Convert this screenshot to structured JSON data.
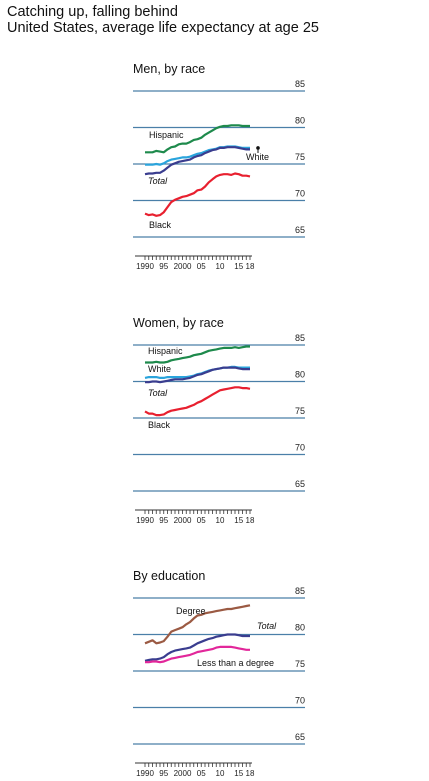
{
  "header": {
    "title": "Catching up, falling behind",
    "subtitle": "United States, average life expectancy at age 25"
  },
  "colors": {
    "hispanic": "#1e8a4c",
    "white": "#2aa4dc",
    "total": "#3a3d8f",
    "black": "#e8202f",
    "degree": "#9b5a43",
    "less_than_degree": "#e2279a",
    "gridline": "#4a7fa8"
  },
  "chart_data": [
    {
      "type": "line",
      "title": "Men, by race",
      "x": [
        1990,
        1991,
        1992,
        1993,
        1994,
        1995,
        1996,
        1997,
        1998,
        1999,
        2000,
        2001,
        2002,
        2003,
        2004,
        2005,
        2006,
        2007,
        2008,
        2009,
        2010,
        2011,
        2012,
        2013,
        2014,
        2015,
        2016,
        2017,
        2018
      ],
      "ylim": [
        65,
        85
      ],
      "yticks": [
        85,
        80,
        75,
        70,
        65
      ],
      "xticklabels": [
        "1990",
        "95",
        "2000",
        "05",
        "10",
        "15",
        "18"
      ],
      "series": [
        {
          "name": "Hispanic",
          "color_key": "hispanic",
          "values": [
            76.6,
            76.6,
            76.6,
            76.8,
            76.7,
            76.6,
            77.0,
            77.3,
            77.4,
            77.7,
            77.8,
            77.8,
            78.0,
            78.3,
            78.4,
            78.6,
            79.0,
            79.3,
            79.6,
            79.9,
            80.1,
            80.2,
            80.2,
            80.3,
            80.3,
            80.3,
            80.2,
            80.2,
            80.2
          ],
          "label_italic": false
        },
        {
          "name": "White",
          "color_key": "white",
          "values": [
            74.9,
            74.9,
            74.9,
            75.0,
            74.9,
            75.1,
            75.4,
            75.6,
            75.7,
            75.8,
            75.9,
            75.9,
            76.0,
            76.2,
            76.4,
            76.5,
            76.7,
            76.9,
            77.0,
            77.1,
            77.3,
            77.3,
            77.4,
            77.4,
            77.4,
            77.3,
            77.2,
            77.2,
            77.2
          ],
          "label_italic": false
        },
        {
          "name": "Total",
          "color_key": "total",
          "values": [
            73.6,
            73.7,
            73.7,
            73.8,
            73.8,
            74.1,
            74.5,
            74.9,
            75.1,
            75.3,
            75.4,
            75.5,
            75.6,
            75.9,
            76.1,
            76.2,
            76.5,
            76.7,
            76.9,
            77.0,
            77.2,
            77.2,
            77.3,
            77.3,
            77.3,
            77.2,
            77.1,
            77.0,
            77.0
          ],
          "label_italic": true
        },
        {
          "name": "Black",
          "color_key": "black",
          "values": [
            68.2,
            68.0,
            68.1,
            67.9,
            68.0,
            68.4,
            69.1,
            69.8,
            70.1,
            70.3,
            70.5,
            70.6,
            70.8,
            71.0,
            71.4,
            71.5,
            71.9,
            72.5,
            72.9,
            73.3,
            73.5,
            73.6,
            73.6,
            73.5,
            73.7,
            73.6,
            73.4,
            73.4,
            73.3
          ],
          "label_italic": false
        }
      ]
    },
    {
      "type": "line",
      "title": "Women, by race",
      "x": [
        1990,
        1991,
        1992,
        1993,
        1994,
        1995,
        1996,
        1997,
        1998,
        1999,
        2000,
        2001,
        2002,
        2003,
        2004,
        2005,
        2006,
        2007,
        2008,
        2009,
        2010,
        2011,
        2012,
        2013,
        2014,
        2015,
        2016,
        2017,
        2018
      ],
      "ylim": [
        65,
        85
      ],
      "yticks": [
        85,
        80,
        75,
        70,
        65
      ],
      "xticklabels": [
        "1990",
        "95",
        "2000",
        "05",
        "10",
        "15",
        "18"
      ],
      "series": [
        {
          "name": "Hispanic",
          "color_key": "hispanic",
          "values": [
            82.6,
            82.6,
            82.6,
            82.7,
            82.6,
            82.6,
            82.7,
            82.9,
            83.0,
            83.1,
            83.2,
            83.3,
            83.4,
            83.6,
            83.7,
            83.8,
            84.0,
            84.2,
            84.3,
            84.4,
            84.5,
            84.6,
            84.6,
            84.6,
            84.7,
            84.6,
            84.7,
            84.8,
            84.8
          ],
          "label_italic": false
        },
        {
          "name": "White",
          "color_key": "white",
          "values": [
            80.5,
            80.6,
            80.6,
            80.6,
            80.5,
            80.5,
            80.6,
            80.6,
            80.6,
            80.6,
            80.6,
            80.6,
            80.7,
            80.8,
            81.0,
            81.1,
            81.3,
            81.5,
            81.6,
            81.7,
            81.8,
            81.9,
            81.9,
            82.0,
            82.0,
            81.9,
            81.9,
            81.9,
            81.9
          ],
          "label_italic": false
        },
        {
          "name": "Total",
          "color_key": "total",
          "values": [
            79.9,
            79.9,
            80.0,
            80.0,
            79.9,
            80.0,
            80.1,
            80.2,
            80.3,
            80.3,
            80.3,
            80.4,
            80.5,
            80.7,
            80.9,
            81.0,
            81.2,
            81.4,
            81.6,
            81.7,
            81.8,
            81.9,
            81.9,
            81.9,
            81.9,
            81.8,
            81.7,
            81.7,
            81.7
          ],
          "label_italic": true
        },
        {
          "name": "Black",
          "color_key": "black",
          "values": [
            75.9,
            75.6,
            75.6,
            75.4,
            75.4,
            75.5,
            75.8,
            76.0,
            76.1,
            76.2,
            76.3,
            76.4,
            76.6,
            76.8,
            77.1,
            77.3,
            77.6,
            77.9,
            78.2,
            78.5,
            78.8,
            78.9,
            79.0,
            79.1,
            79.2,
            79.2,
            79.1,
            79.1,
            79.0
          ],
          "label_italic": false
        }
      ]
    },
    {
      "type": "line",
      "title": "By education",
      "x": [
        1990,
        1991,
        1992,
        1993,
        1994,
        1995,
        1996,
        1997,
        1998,
        1999,
        2000,
        2001,
        2002,
        2003,
        2004,
        2005,
        2006,
        2007,
        2008,
        2009,
        2010,
        2011,
        2012,
        2013,
        2014,
        2015,
        2016,
        2017,
        2018
      ],
      "ylim": [
        65,
        85
      ],
      "yticks": [
        85,
        80,
        75,
        70,
        65
      ],
      "xticklabels": [
        "1990",
        "95",
        "2000",
        "05",
        "10",
        "15",
        "18"
      ],
      "series": [
        {
          "name": "Degree",
          "color_key": "degree",
          "values": [
            78.8,
            79.0,
            79.2,
            78.8,
            78.9,
            79.1,
            79.7,
            80.4,
            80.6,
            80.8,
            81.0,
            81.4,
            81.7,
            82.2,
            82.6,
            82.7,
            82.9,
            83.0,
            83.1,
            83.2,
            83.3,
            83.4,
            83.5,
            83.5,
            83.6,
            83.7,
            83.8,
            83.9,
            84.0
          ],
          "label_italic": false
        },
        {
          "name": "Total",
          "color_key": "total",
          "values": [
            76.4,
            76.5,
            76.6,
            76.6,
            76.7,
            76.9,
            77.3,
            77.6,
            77.8,
            77.9,
            78.0,
            78.1,
            78.2,
            78.5,
            78.8,
            79.0,
            79.2,
            79.4,
            79.5,
            79.7,
            79.8,
            79.9,
            80.0,
            80.0,
            80.0,
            79.9,
            79.8,
            79.8,
            79.8
          ],
          "label_italic": true
        },
        {
          "name": "Less than a degree",
          "color_key": "less_than_degree",
          "values": [
            76.2,
            76.2,
            76.3,
            76.3,
            76.2,
            76.3,
            76.5,
            76.7,
            76.8,
            76.9,
            77.0,
            77.1,
            77.2,
            77.4,
            77.6,
            77.7,
            77.8,
            77.9,
            78.0,
            78.2,
            78.3,
            78.3,
            78.3,
            78.3,
            78.2,
            78.1,
            78.0,
            77.9,
            77.9
          ],
          "label_italic": false
        }
      ]
    }
  ]
}
